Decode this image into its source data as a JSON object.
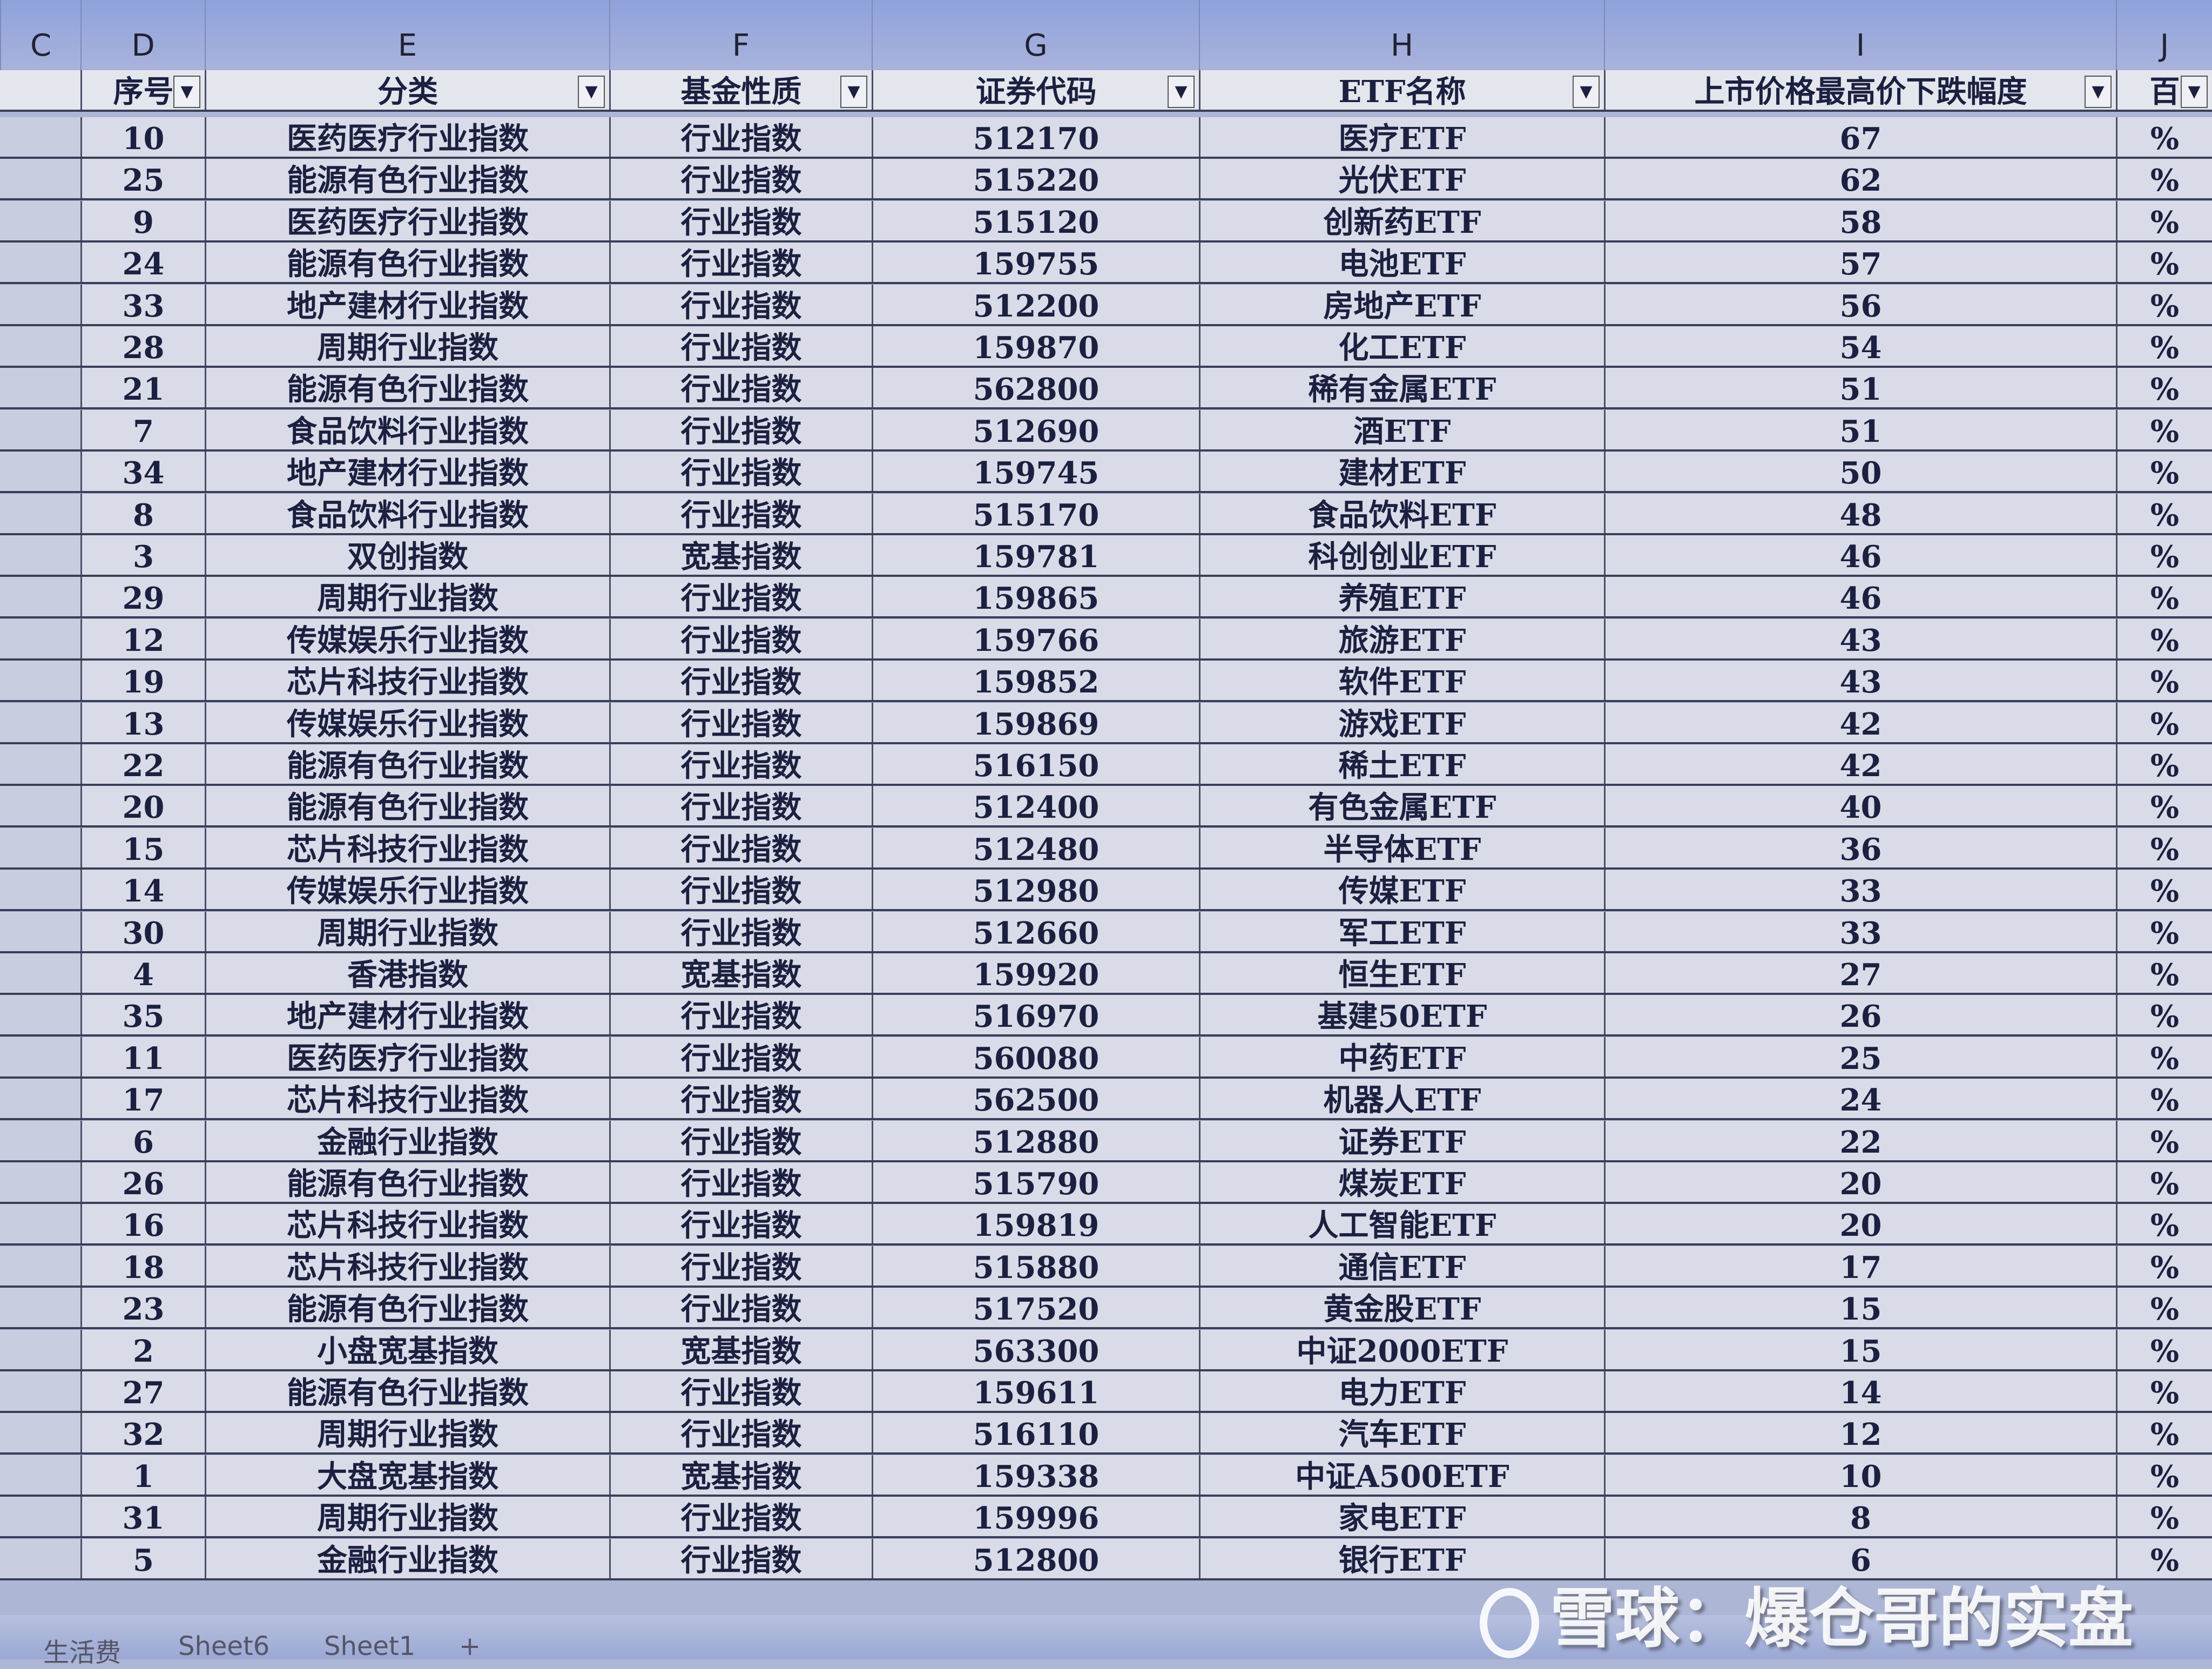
{
  "column_letters": [
    "C",
    "D",
    "E",
    "F",
    "G",
    "H",
    "I",
    "J"
  ],
  "headers": [
    "",
    "序号",
    "分类",
    "基金性质",
    "证券代码",
    "ETF名称",
    "上市价格最高价下跌幅度",
    "百"
  ],
  "rows": [
    [
      "10",
      "医药医疗行业指数",
      "行业指数",
      "512170",
      "医疗ETF",
      "67",
      "%"
    ],
    [
      "25",
      "能源有色行业指数",
      "行业指数",
      "515220",
      "光伏ETF",
      "62",
      "%"
    ],
    [
      "9",
      "医药医疗行业指数",
      "行业指数",
      "515120",
      "创新药ETF",
      "58",
      "%"
    ],
    [
      "24",
      "能源有色行业指数",
      "行业指数",
      "159755",
      "电池ETF",
      "57",
      "%"
    ],
    [
      "33",
      "地产建材行业指数",
      "行业指数",
      "512200",
      "房地产ETF",
      "56",
      "%"
    ],
    [
      "28",
      "周期行业指数",
      "行业指数",
      "159870",
      "化工ETF",
      "54",
      "%"
    ],
    [
      "21",
      "能源有色行业指数",
      "行业指数",
      "562800",
      "稀有金属ETF",
      "51",
      "%"
    ],
    [
      "7",
      "食品饮料行业指数",
      "行业指数",
      "512690",
      "酒ETF",
      "51",
      "%"
    ],
    [
      "34",
      "地产建材行业指数",
      "行业指数",
      "159745",
      "建材ETF",
      "50",
      "%"
    ],
    [
      "8",
      "食品饮料行业指数",
      "行业指数",
      "515170",
      "食品饮料ETF",
      "48",
      "%"
    ],
    [
      "3",
      "双创指数",
      "宽基指数",
      "159781",
      "科创创业ETF",
      "46",
      "%"
    ],
    [
      "29",
      "周期行业指数",
      "行业指数",
      "159865",
      "养殖ETF",
      "46",
      "%"
    ],
    [
      "12",
      "传媒娱乐行业指数",
      "行业指数",
      "159766",
      "旅游ETF",
      "43",
      "%"
    ],
    [
      "19",
      "芯片科技行业指数",
      "行业指数",
      "159852",
      "软件ETF",
      "43",
      "%"
    ],
    [
      "13",
      "传媒娱乐行业指数",
      "行业指数",
      "159869",
      "游戏ETF",
      "42",
      "%"
    ],
    [
      "22",
      "能源有色行业指数",
      "行业指数",
      "516150",
      "稀土ETF",
      "42",
      "%"
    ],
    [
      "20",
      "能源有色行业指数",
      "行业指数",
      "512400",
      "有色金属ETF",
      "40",
      "%"
    ],
    [
      "15",
      "芯片科技行业指数",
      "行业指数",
      "512480",
      "半导体ETF",
      "36",
      "%"
    ],
    [
      "14",
      "传媒娱乐行业指数",
      "行业指数",
      "512980",
      "传媒ETF",
      "33",
      "%"
    ],
    [
      "30",
      "周期行业指数",
      "行业指数",
      "512660",
      "军工ETF",
      "33",
      "%"
    ],
    [
      "4",
      "香港指数",
      "宽基指数",
      "159920",
      "恒生ETF",
      "27",
      "%"
    ],
    [
      "35",
      "地产建材行业指数",
      "行业指数",
      "516970",
      "基建50ETF",
      "26",
      "%"
    ],
    [
      "11",
      "医药医疗行业指数",
      "行业指数",
      "560080",
      "中药ETF",
      "25",
      "%"
    ],
    [
      "17",
      "芯片科技行业指数",
      "行业指数",
      "562500",
      "机器人ETF",
      "24",
      "%"
    ],
    [
      "6",
      "金融行业指数",
      "行业指数",
      "512880",
      "证券ETF",
      "22",
      "%"
    ],
    [
      "26",
      "能源有色行业指数",
      "行业指数",
      "515790",
      "煤炭ETF",
      "20",
      "%"
    ],
    [
      "16",
      "芯片科技行业指数",
      "行业指数",
      "159819",
      "人工智能ETF",
      "20",
      "%"
    ],
    [
      "18",
      "芯片科技行业指数",
      "行业指数",
      "515880",
      "通信ETF",
      "17",
      "%"
    ],
    [
      "23",
      "能源有色行业指数",
      "行业指数",
      "517520",
      "黄金股ETF",
      "15",
      "%"
    ],
    [
      "2",
      "小盘宽基指数",
      "宽基指数",
      "563300",
      "中证2000ETF",
      "15",
      "%"
    ],
    [
      "27",
      "能源有色行业指数",
      "行业指数",
      "159611",
      "电力ETF",
      "14",
      "%"
    ],
    [
      "32",
      "周期行业指数",
      "行业指数",
      "516110",
      "汽车ETF",
      "12",
      "%"
    ],
    [
      "1",
      "大盘宽基指数",
      "宽基指数",
      "159338",
      "中证A500ETF",
      "10",
      "%"
    ],
    [
      "31",
      "周期行业指数",
      "行业指数",
      "159996",
      "家电ETF",
      "8",
      "%"
    ],
    [
      "5",
      "金融行业指数",
      "行业指数",
      "512800",
      "银行ETF",
      "6",
      "%"
    ]
  ],
  "sheet_tabs": [
    "生活费",
    "Sheet6",
    "Sheet1",
    "+"
  ],
  "watermark": "雪球：爆仓哥的实盘",
  "filter_icon": "dropdown-arrow-icon"
}
